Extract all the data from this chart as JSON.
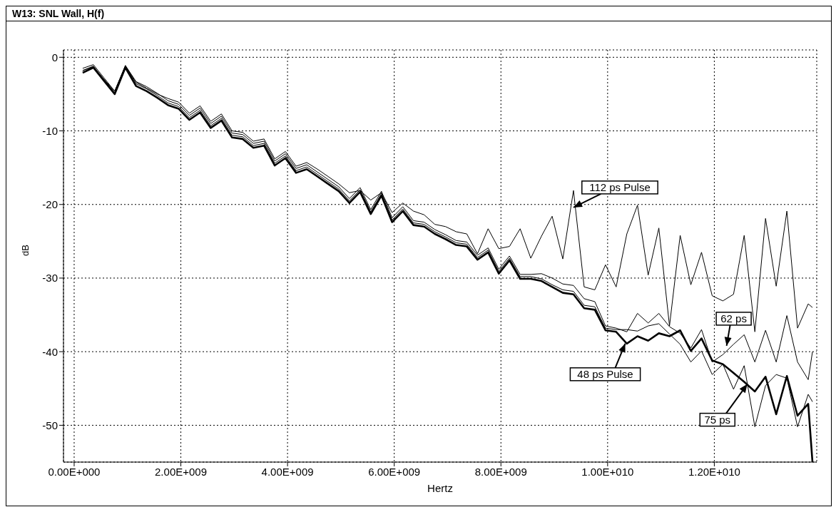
{
  "chart_data": {
    "type": "line",
    "title": "W13: SNL Wall, H(f)",
    "xlabel": "Hertz",
    "ylabel": "dB",
    "x": [
      160000000.0,
      360000000.0,
      560000000.0,
      760000000.0,
      960000000.0,
      1160000000.0,
      1360000000.0,
      1560000000.0,
      1760000000.0,
      1960000000.0,
      2160000000.0,
      2360000000.0,
      2560000000.0,
      2760000000.0,
      2960000000.0,
      3160000000.0,
      3360000000.0,
      3560000000.0,
      3760000000.0,
      3960000000.0,
      4160000000.0,
      4360000000.0,
      4560000000.0,
      4760000000.0,
      4960000000.0,
      5160000000.0,
      5360000000.0,
      5560000000.0,
      5760000000.0,
      5960000000.0,
      6160000000.0,
      6360000000.0,
      6560000000.0,
      6760000000.0,
      6960000000.0,
      7160000000.0,
      7360000000.0,
      7560000000.0,
      7760000000.0,
      7960000000.0,
      8160000000.0,
      8360000000.0,
      8560000000.0,
      8760000000.0,
      8960000000.0,
      9160000000.0,
      9360000000.0,
      9560000000.0,
      9760000000.0,
      9960000000.0,
      10160000000.0,
      10360000000.0,
      10560000000.0,
      10760000000.0,
      10960000000.0,
      11160000000.0,
      11360000000.0,
      11560000000.0,
      11760000000.0,
      11960000000.0,
      12160000000.0,
      12360000000.0,
      12560000000.0,
      12760000000.0,
      12960000000.0,
      13160000000.0,
      13360000000.0,
      13560000000.0,
      13760000000.0,
      13840000000.0
    ],
    "series": [
      {
        "color": "#000000",
        "values": [
          -2.1,
          -1.4,
          -3.2,
          -5.0,
          -1.4,
          -3.9,
          -4.6,
          -5.5,
          -6.5,
          -7.0,
          -8.5,
          -7.5,
          -9.6,
          -8.6,
          -10.9,
          -11.1,
          -12.3,
          -12.0,
          -14.7,
          -13.7,
          -15.7,
          -15.2,
          -16.2,
          -17.2,
          -18.2,
          -19.8,
          -18.3,
          -21.3,
          -18.8,
          -22.4,
          -20.9,
          -22.8,
          -23.0,
          -24.0,
          -24.7,
          -25.5,
          -25.7,
          -27.5,
          -26.5,
          -29.4,
          -27.6,
          -30.1,
          -30.1,
          -30.4,
          -31.2,
          -32.0,
          -32.2,
          -34.1,
          -34.3,
          -37.1,
          -37.3,
          -38.9,
          -37.9,
          -38.5,
          -37.5,
          -37.9,
          -37.1,
          -39.9,
          -38.2,
          -41.2,
          -41.7,
          -42.9,
          -44.1,
          -45.4,
          -43.4,
          -48.5,
          -43.3,
          -48.7,
          -47.1,
          -55.0
        ]
      },
      {
        "color": "#000000",
        "values": [
          -1.5,
          -1.0,
          -2.8,
          -4.6,
          -1.1,
          -3.3,
          -4.0,
          -4.9,
          -5.9,
          -6.4,
          -7.9,
          -6.9,
          -9.0,
          -8.0,
          -10.3,
          -10.5,
          -11.7,
          -11.4,
          -14.1,
          -13.1,
          -15.1,
          -14.6,
          -15.6,
          -16.6,
          -17.6,
          -19.2,
          -17.7,
          -20.7,
          -18.2,
          -21.8,
          -20.3,
          -22.2,
          -22.4,
          -23.4,
          -24.1,
          -24.9,
          -25.1,
          -26.9,
          -25.9,
          -28.8,
          -27.0,
          -29.5,
          -29.5,
          -29.4,
          -30.0,
          -30.8,
          -31.0,
          -32.8,
          -33.2,
          -36.5,
          -36.8,
          -37.3,
          -34.8,
          -36.1,
          -34.8,
          -36.6,
          -37.5,
          -39.5,
          -37.0,
          -41.4,
          -40.4,
          -39.0,
          -37.7,
          -41.4,
          -37.1,
          -41.4,
          -35.1,
          -41.4,
          -43.8,
          -40.0
        ]
      },
      {
        "color": "#000000",
        "values": [
          -1.8,
          -1.2,
          -3.0,
          -4.8,
          -1.2,
          -3.6,
          -4.3,
          -5.2,
          -6.2,
          -6.7,
          -8.2,
          -7.2,
          -9.3,
          -8.3,
          -10.6,
          -10.8,
          -12.0,
          -11.7,
          -14.4,
          -13.4,
          -15.4,
          -14.9,
          -15.9,
          -16.9,
          -17.9,
          -19.5,
          -18.0,
          -21.0,
          -18.5,
          -22.1,
          -20.6,
          -22.5,
          -22.7,
          -23.7,
          -24.4,
          -25.2,
          -25.4,
          -27.2,
          -26.2,
          -29.1,
          -27.3,
          -29.8,
          -29.8,
          -30.1,
          -30.9,
          -31.6,
          -31.8,
          -33.7,
          -33.9,
          -36.8,
          -37.0,
          -37.0,
          -37.2,
          -36.5,
          -36.2,
          -37.6,
          -39.0,
          -41.4,
          -39.9,
          -43.1,
          -41.7,
          -45.1,
          -41.9,
          -50.2,
          -44.6,
          -43.1,
          -43.6,
          -50.2,
          -45.8,
          -46.8
        ]
      },
      {
        "color": "#000000",
        "values": [
          -1.8,
          -1.3,
          -3.0,
          -4.6,
          -1.2,
          -3.4,
          -4.2,
          -5.0,
          -5.6,
          -6.1,
          -7.6,
          -6.6,
          -8.7,
          -7.7,
          -10.0,
          -10.2,
          -11.4,
          -11.1,
          -13.8,
          -12.8,
          -14.8,
          -14.3,
          -15.2,
          -16.2,
          -17.2,
          -18.4,
          -18.1,
          -19.4,
          -18.4,
          -21.1,
          -19.8,
          -20.9,
          -21.4,
          -22.7,
          -23.0,
          -23.7,
          -24.0,
          -26.7,
          -23.3,
          -26.0,
          -25.7,
          -23.3,
          -27.3,
          -24.3,
          -21.6,
          -27.4,
          -18.1,
          -31.2,
          -31.6,
          -28.2,
          -31.2,
          -24.0,
          -20.1,
          -29.6,
          -23.2,
          -36.5,
          -24.2,
          -30.9,
          -26.5,
          -32.4,
          -33.1,
          -32.2,
          -24.2,
          -37.3,
          -21.9,
          -31.1,
          -20.9,
          -36.8,
          -33.5,
          -34.0
        ]
      }
    ],
    "xlim": [
      -200000000.0,
      13920000000.0
    ],
    "xticks": [
      {
        "value": 0,
        "label": "0.00E+000"
      },
      {
        "value": 2000000000.0,
        "label": "2.00E+009"
      },
      {
        "value": 4000000000.0,
        "label": "4.00E+009"
      },
      {
        "value": 6000000000.0,
        "label": "6.00E+009"
      },
      {
        "value": 8000000000.0,
        "label": "8.00E+009"
      },
      {
        "value": 10000000000.0,
        "label": "1.00E+010"
      },
      {
        "value": 12000000000.0,
        "label": "1.20E+010"
      }
    ],
    "ylim": [
      -55,
      1
    ],
    "yticks": [
      0,
      -10,
      -20,
      -30,
      -40,
      -50
    ],
    "grid": true,
    "line_style": "solid",
    "annotations": [
      {
        "text": "112 ps Pulse",
        "x": 9360000000.0,
        "y": -20.4
      },
      {
        "text": "62 ps",
        "x": 12230000000.0,
        "y": -39.2
      },
      {
        "text": "48 ps Pulse",
        "x": 10330000000.0,
        "y": -38.9
      },
      {
        "text": "75 ps",
        "x": 12620000000.0,
        "y": -44.4
      }
    ]
  }
}
